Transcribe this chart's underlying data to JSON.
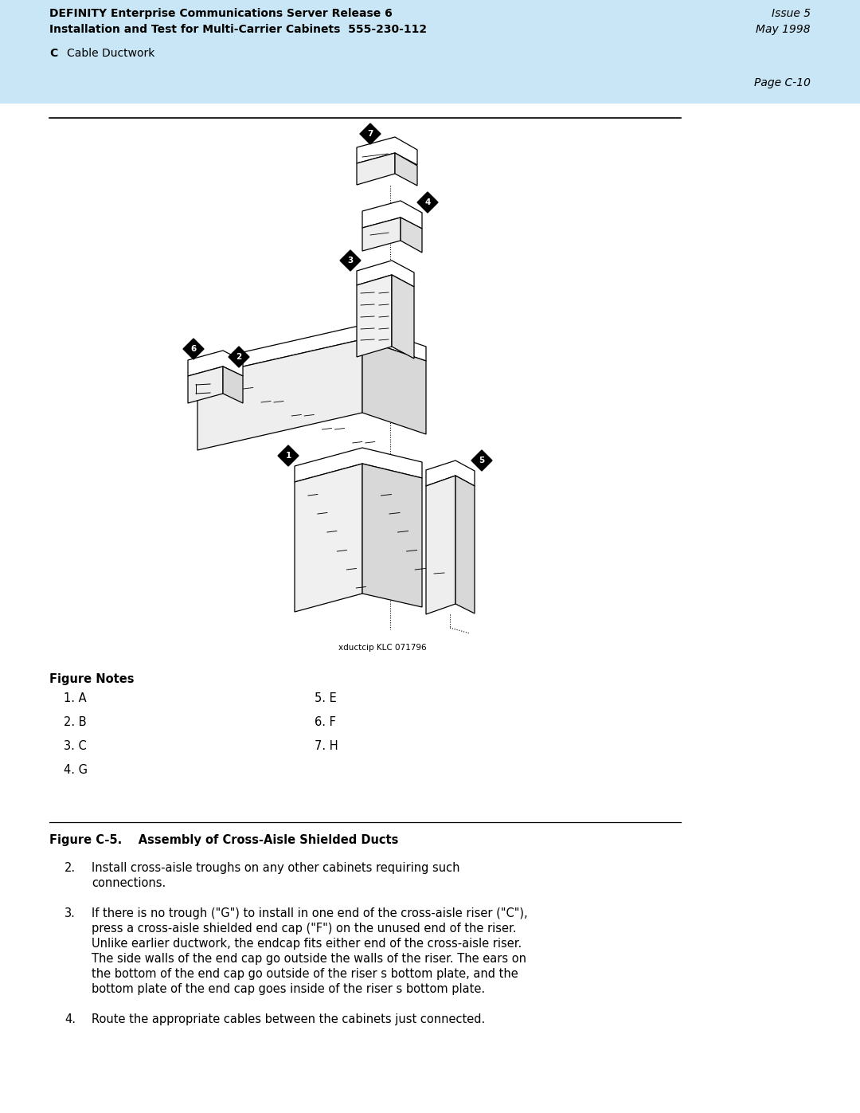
{
  "header_bg": "#c8e6f5",
  "header_title_left1": "DEFINITY Enterprise Communications Server Release 6",
  "header_title_left2": "Installation and Test for Multi-Carrier Cabinets  555-230-112",
  "header_right1": "Issue 5",
  "header_right2": "May 1998",
  "section_label": "C",
  "section_title": "Cable Ductwork",
  "page_number": "Page C-10",
  "figure_caption": "Figure C-5.    Assembly of Cross-Aisle Shielded Ducts",
  "image_credit": "xductcip KLC 071796",
  "figure_notes_title": "Figure Notes",
  "figure_notes_left": [
    "1. A",
    "2. B",
    "3. C",
    "4. G"
  ],
  "figure_notes_right": [
    "5. E",
    "6. F",
    "7. H"
  ],
  "body_text": [
    {
      "num": "2.",
      "text": "Install cross-aisle troughs on any other cabinets requiring such\nconnections."
    },
    {
      "num": "3.",
      "text": "If there is no trough (\"G\") to install in one end of the cross-aisle riser (\"C\"),\npress a cross-aisle shielded end cap (\"F\") on the unused end of the riser.\nUnlike earlier ductwork, the endcap fits either end of the cross-aisle riser.\nThe side walls of the end cap go outside the walls of the riser. The ears on\nthe bottom of the end cap go outside of the riser s bottom plate, and the\nbottom plate of the end cap goes inside of the riser s bottom plate."
    },
    {
      "num": "4.",
      "text": "Route the appropriate cables between the cabinets just connected."
    }
  ],
  "bg_color": "#ffffff",
  "text_color": "#000000"
}
